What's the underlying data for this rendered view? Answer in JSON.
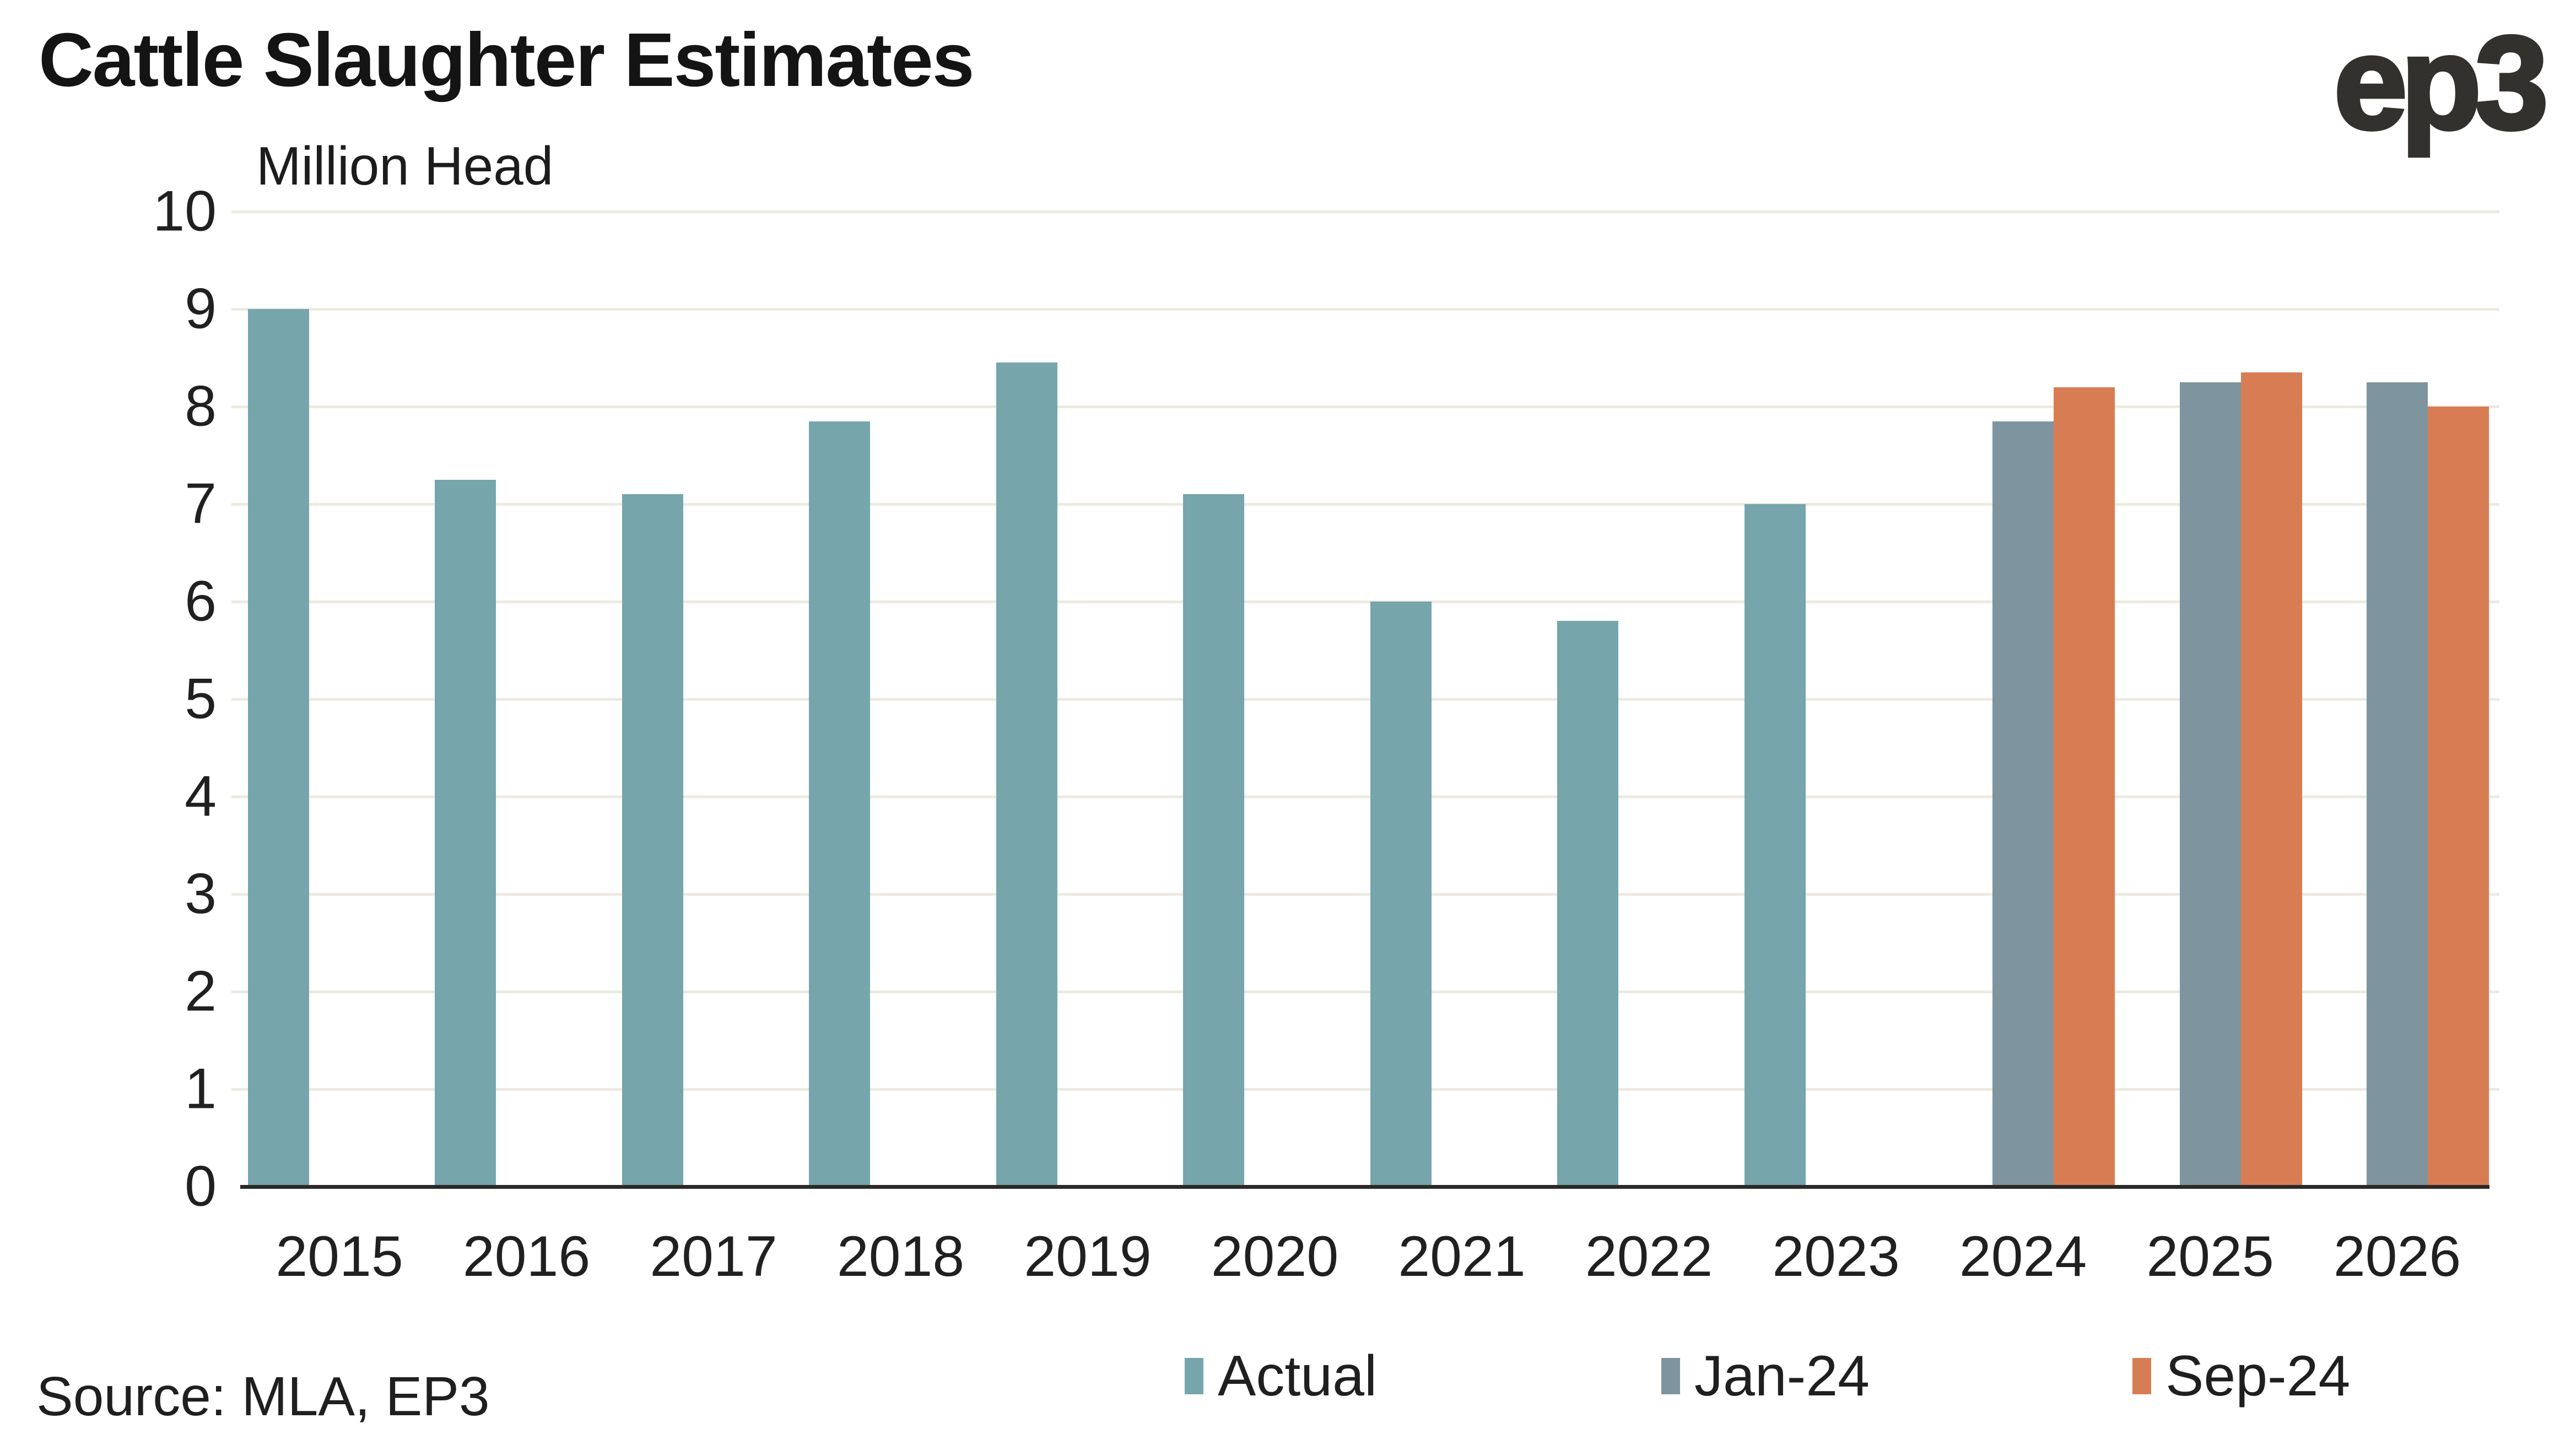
{
  "header": {
    "title": "Cattle Slaughter Estimates",
    "subtitle": "Million Head",
    "logo_text": "ep3"
  },
  "footer": {
    "source": "Source: MLA, EP3"
  },
  "legend": [
    {
      "label": "Actual",
      "color": "#76a5ab"
    },
    {
      "label": "Jan-24",
      "color": "#7e949f"
    },
    {
      "label": "Sep-24",
      "color": "#d87d53"
    }
  ],
  "colors": {
    "actual_bar": "#76a5ab",
    "jan24_bar": "#7e949f",
    "sep24_bar": "#d87d53",
    "gridline": "#edeae0",
    "axis_line": "#2b2a28",
    "text": "#1f1f1f",
    "logo": "#33312d"
  },
  "chart_data": {
    "type": "bar",
    "title": "Cattle Slaughter Estimates",
    "ylabel": "Million Head",
    "xlabel": "",
    "ylim": [
      0,
      10
    ],
    "y_tick_step": 1,
    "grid": "horizontal",
    "legend_position": "bottom",
    "categories": [
      "2015",
      "2016",
      "2017",
      "2018",
      "2019",
      "2020",
      "2021",
      "2022",
      "2023",
      "2024",
      "2025",
      "2026"
    ],
    "series": [
      {
        "name": "Actual",
        "color": "#76a5ab",
        "values": [
          9.0,
          7.25,
          7.1,
          7.85,
          8.45,
          7.1,
          6.0,
          5.8,
          7.0,
          null,
          null,
          null
        ]
      },
      {
        "name": "Jan-24",
        "color": "#7e949f",
        "values": [
          null,
          null,
          null,
          null,
          null,
          null,
          null,
          null,
          null,
          7.85,
          8.25,
          8.25
        ]
      },
      {
        "name": "Sep-24",
        "color": "#d87d53",
        "values": [
          null,
          null,
          null,
          null,
          null,
          null,
          null,
          null,
          null,
          8.2,
          8.35,
          8.0
        ]
      }
    ]
  }
}
